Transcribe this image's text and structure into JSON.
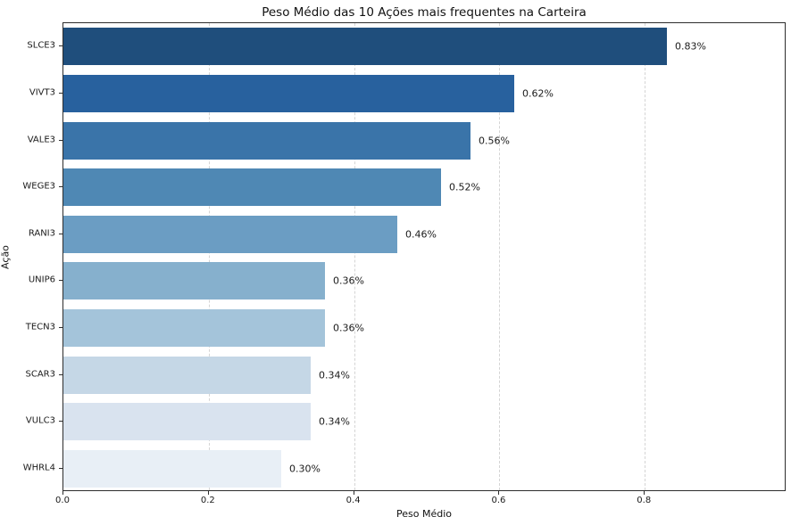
{
  "chart_data": {
    "type": "bar",
    "orientation": "horizontal",
    "title": "Peso Médio das 10 Ações mais frequentes na Carteira",
    "xlabel": "Peso Médio",
    "ylabel": "Ação",
    "categories": [
      "SLCE3",
      "VIVT3",
      "VALE3",
      "WEGE3",
      "RANI3",
      "UNIP6",
      "TECN3",
      "SCAR3",
      "VULC3",
      "WHRL4"
    ],
    "values": [
      0.83,
      0.62,
      0.56,
      0.52,
      0.46,
      0.36,
      0.36,
      0.34,
      0.34,
      0.3
    ],
    "value_labels": [
      "0.83%",
      "0.62%",
      "0.56%",
      "0.52%",
      "0.46%",
      "0.36%",
      "0.36%",
      "0.34%",
      "0.34%",
      "0.30%"
    ],
    "bar_colors": [
      "#1f4e7c",
      "#28619e",
      "#3a74a9",
      "#4f88b4",
      "#6b9dc3",
      "#86b0cd",
      "#a4c4da",
      "#c5d7e6",
      "#d9e3ef",
      "#e8eff6"
    ],
    "xlim": [
      0,
      0.995
    ],
    "x_ticks": [
      0.0,
      0.2,
      0.4,
      0.6,
      0.8
    ],
    "x_tick_labels": [
      "0.0",
      "0.2",
      "0.4",
      "0.6",
      "0.8"
    ],
    "grid": "vertical-dashed",
    "gridline_color": "#d4d4d4",
    "background_color": "#ffffff",
    "legend": "none"
  }
}
